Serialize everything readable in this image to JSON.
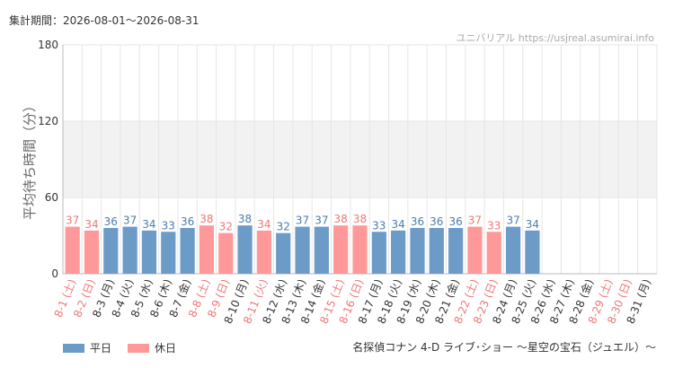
{
  "header": {
    "period": "集計期間：2026-08-01～2026-08-31",
    "site": "ユニバリアル  https://usjreal.asumirai.info"
  },
  "footer": {
    "attraction": "名探偵コナン 4-D ライブ･ショー ～星空の宝石（ジュエル）～"
  },
  "colors": {
    "weekday": "#6c9bc8",
    "holiday": "#ff9999",
    "weekday_text": "#4a7cb0",
    "holiday_text": "#ee7777",
    "band": "#f2f2f2",
    "grid": "#e6e6e6"
  },
  "chart_data": {
    "type": "bar",
    "ylabel": "平均待ち時間（分）",
    "ylim": [
      0,
      180
    ],
    "yticks": [
      0,
      60,
      120,
      180
    ],
    "categories": [
      "8-1 (土)",
      "8-2 (日)",
      "8-3 (月)",
      "8-4 (火)",
      "8-5 (水)",
      "8-6 (木)",
      "8-7 (金)",
      "8-8 (土)",
      "8-9 (日)",
      "8-10 (月)",
      "8-11 (火)",
      "8-12 (水)",
      "8-13 (木)",
      "8-14 (金)",
      "8-15 (土)",
      "8-16 (日)",
      "8-17 (月)",
      "8-18 (火)",
      "8-19 (水)",
      "8-20 (木)",
      "8-21 (金)",
      "8-22 (土)",
      "8-23 (日)",
      "8-24 (月)",
      "8-25 (火)",
      "8-26 (水)",
      "8-27 (木)",
      "8-28 (金)",
      "8-29 (土)",
      "8-30 (日)",
      "8-31 (月)"
    ],
    "values": [
      37,
      34,
      36,
      37,
      34,
      33,
      36,
      38,
      32,
      38,
      34,
      32,
      37,
      37,
      38,
      38,
      33,
      34,
      36,
      36,
      36,
      37,
      33,
      37,
      34,
      null,
      null,
      null,
      null,
      null,
      null
    ],
    "day_type": [
      "休日",
      "休日",
      "平日",
      "平日",
      "平日",
      "平日",
      "平日",
      "休日",
      "休日",
      "平日",
      "休日",
      "平日",
      "平日",
      "平日",
      "休日",
      "休日",
      "平日",
      "平日",
      "平日",
      "平日",
      "平日",
      "休日",
      "休日",
      "平日",
      "平日",
      "平日",
      "平日",
      "平日",
      "休日",
      "休日",
      "平日"
    ],
    "legend": [
      {
        "name": "平日",
        "type": "平日"
      },
      {
        "name": "休日",
        "type": "休日"
      }
    ]
  }
}
